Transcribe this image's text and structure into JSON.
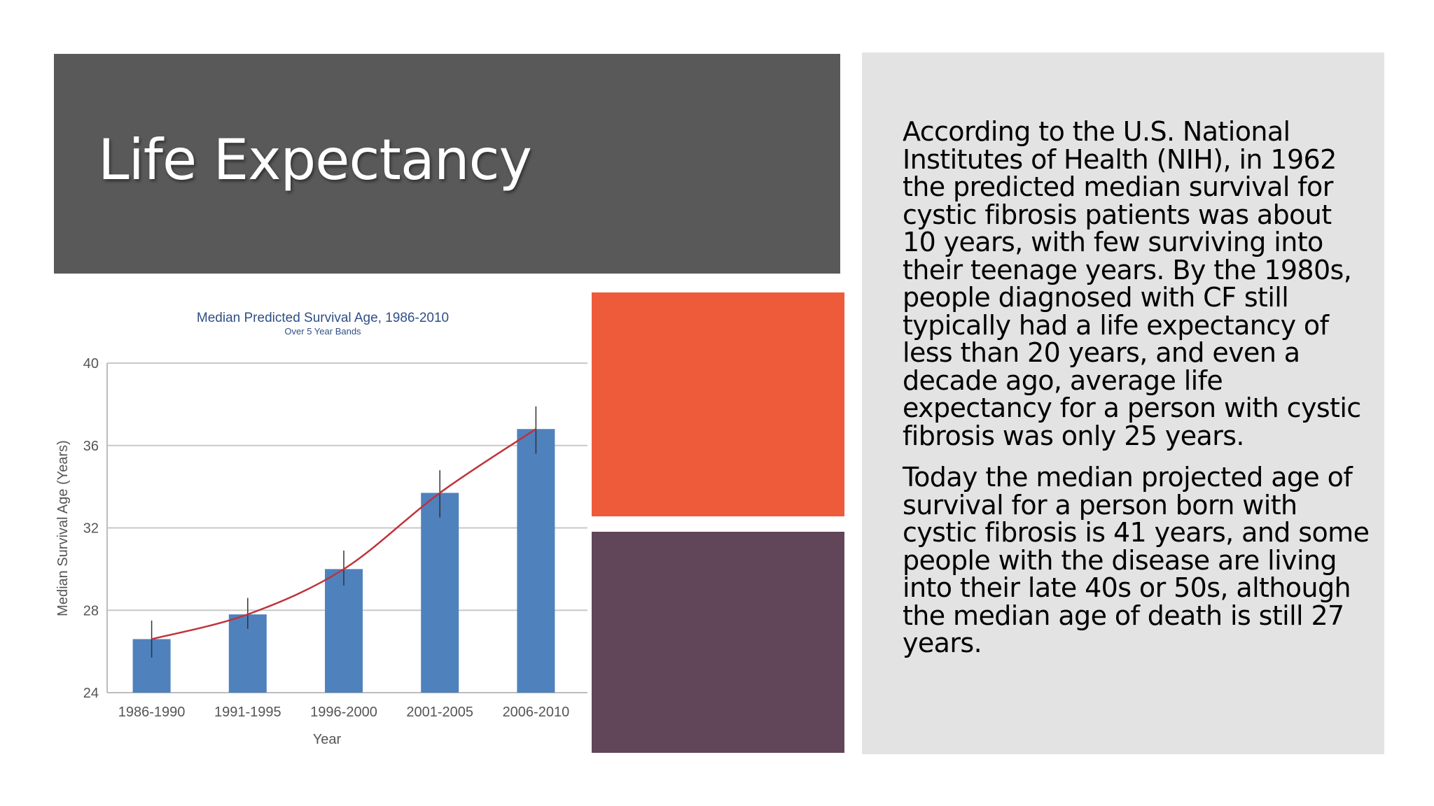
{
  "slide": {
    "title": "Life Expectancy",
    "paragraphs": [
      "According to the U.S. National Institutes of Health (NIH), in 1962 the predicted median survival for cystic fibrosis patients was about 10 years, with few surviving into their teenage years. By the 1980s, people diagnosed with CF still typically had a life expectancy of less than 20 years, and even a decade ago, average life expectancy for a person with cystic fibrosis was only 25 years.",
      "Today the median projected age of survival for a person born with cystic fibrosis is 41 years, and some people with the disease are living into their late 40s or 50s, although the median age of death is still 27 years."
    ],
    "colors": {
      "title_panel": "#595959",
      "text_panel": "#e3e3e3",
      "orange_block": "#ee5b3a",
      "plum_block": "#614659"
    }
  },
  "chart_data": {
    "type": "bar",
    "title": "Median Predicted Survival Age, 1986-2010",
    "subtitle": "Over 5 Year Bands",
    "xlabel": "Year",
    "ylabel": "Median Survival Age (Years)",
    "categories": [
      "1986-1990",
      "1991-1995",
      "1996-2000",
      "2001-2005",
      "2006-2010"
    ],
    "values": [
      26.6,
      27.8,
      30.0,
      33.7,
      36.8
    ],
    "error_bars": [
      {
        "low": 25.7,
        "high": 27.5
      },
      {
        "low": 27.1,
        "high": 28.6
      },
      {
        "low": 29.2,
        "high": 30.9
      },
      {
        "low": 32.5,
        "high": 34.8
      },
      {
        "low": 35.6,
        "high": 37.9
      }
    ],
    "trend_line": [
      26.6,
      27.8,
      30.0,
      33.7,
      36.8
    ],
    "ylim": [
      24,
      40
    ],
    "yticks": [
      24,
      28,
      32,
      36,
      40
    ],
    "grid": true,
    "colors": {
      "bar": "#4f81bd",
      "trend": "#c0323a",
      "error": "#333333",
      "grid": "#c8c8c8"
    }
  }
}
